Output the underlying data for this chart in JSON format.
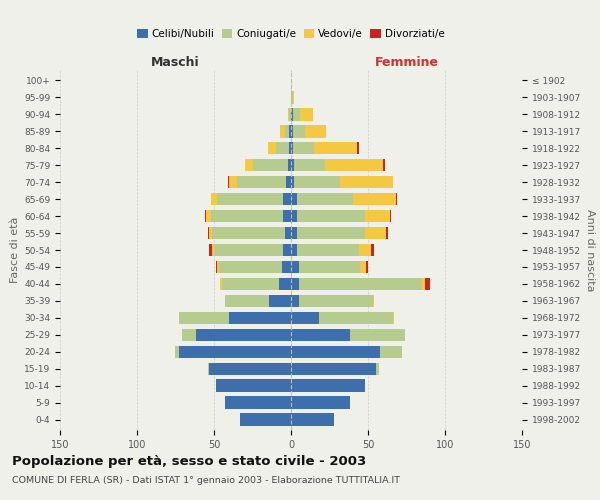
{
  "age_groups": [
    "100+",
    "95-99",
    "90-94",
    "85-89",
    "80-84",
    "75-79",
    "70-74",
    "65-69",
    "60-64",
    "55-59",
    "50-54",
    "45-49",
    "40-44",
    "35-39",
    "30-34",
    "25-29",
    "20-24",
    "15-19",
    "10-14",
    "5-9",
    "0-4"
  ],
  "birth_years": [
    "≤ 1902",
    "1903-1907",
    "1908-1912",
    "1913-1917",
    "1918-1922",
    "1923-1927",
    "1928-1932",
    "1933-1937",
    "1938-1942",
    "1943-1947",
    "1948-1952",
    "1953-1957",
    "1958-1962",
    "1963-1967",
    "1968-1972",
    "1973-1977",
    "1978-1982",
    "1983-1987",
    "1988-1992",
    "1993-1997",
    "1998-2002"
  ],
  "colors": {
    "single": "#3d6fad",
    "married": "#b5cc8e",
    "widowed": "#f5c842",
    "divorced": "#cc2222"
  },
  "males_single": [
    0,
    0,
    0,
    1,
    1,
    2,
    3,
    5,
    5,
    4,
    5,
    6,
    8,
    14,
    40,
    62,
    73,
    53,
    49,
    43,
    33
  ],
  "males_married": [
    0,
    0,
    1,
    3,
    9,
    23,
    32,
    43,
    47,
    47,
    45,
    41,
    37,
    29,
    33,
    9,
    2,
    1,
    0,
    0,
    0
  ],
  "males_widowed": [
    0,
    0,
    1,
    3,
    5,
    5,
    5,
    4,
    3,
    2,
    1,
    1,
    1,
    0,
    0,
    0,
    0,
    0,
    0,
    0,
    0
  ],
  "males_divorced": [
    0,
    0,
    0,
    0,
    0,
    0,
    1,
    0,
    1,
    1,
    2,
    1,
    0,
    0,
    0,
    0,
    0,
    0,
    0,
    0,
    0
  ],
  "females_single": [
    0,
    0,
    1,
    1,
    1,
    2,
    2,
    4,
    4,
    4,
    4,
    5,
    5,
    5,
    18,
    38,
    58,
    55,
    48,
    38,
    28
  ],
  "females_married": [
    0,
    1,
    5,
    8,
    14,
    20,
    30,
    36,
    44,
    44,
    40,
    40,
    80,
    48,
    48,
    36,
    14,
    2,
    0,
    0,
    0
  ],
  "females_widowed": [
    0,
    1,
    8,
    14,
    28,
    38,
    34,
    28,
    16,
    14,
    8,
    4,
    2,
    1,
    1,
    0,
    0,
    0,
    0,
    0,
    0
  ],
  "females_divorced": [
    0,
    0,
    0,
    0,
    1,
    1,
    0,
    1,
    1,
    1,
    2,
    1,
    3,
    0,
    0,
    0,
    0,
    0,
    0,
    0,
    0
  ],
  "title": "Popolazione per età, sesso e stato civile - 2003",
  "subtitle": "COMUNE DI FERLA (SR) - Dati ISTAT 1° gennaio 2003 - Elaborazione TUTTITALIA.IT",
  "xlabel_left": "Maschi",
  "xlabel_right": "Femmine",
  "ylabel_left": "Fasce di età",
  "ylabel_right": "Anni di nascita",
  "xlim": 150,
  "bg_color": "#f0f0eb",
  "bar_height": 0.75
}
